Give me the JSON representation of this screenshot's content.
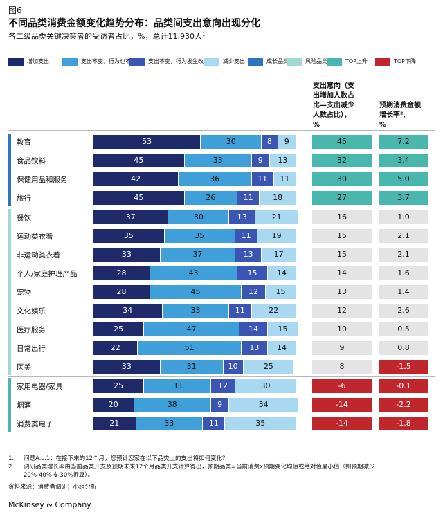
{
  "header": {
    "figure_label": "图6",
    "title": "不同品类消费金额变化趋势分布：品类间支出意向出现分化",
    "subtitle": "各二级品类关键决策者的受访者占比，%，总计11,930人",
    "subtitle_sup": "1"
  },
  "legend": [
    {
      "label": "增加支出",
      "color": "#1f2a6b"
    },
    {
      "label": "支出不变，行为也不变",
      "color": "#3f9fd8"
    },
    {
      "label": "支出不变，行为发生改变",
      "color": "#3a55b4"
    },
    {
      "label": "减少支出",
      "color": "#a9d8f1"
    },
    {
      "label": "成长品类",
      "color": "#2f74c0"
    },
    {
      "label": "风险品类",
      "color": "#9fdad4"
    },
    {
      "label": "TOP上升",
      "color": "#49b7ad"
    },
    {
      "label": "TOP下降",
      "color": "#c0272d"
    }
  ],
  "columns": {
    "intent_header_lines": [
      "支出意向（支",
      "出增加人数占",
      "比—支出减少",
      "人数占比），",
      "%"
    ],
    "growth_header_lines": [
      "预期消费金额",
      "增长率²,",
      "%"
    ]
  },
  "chart_data": {
    "type": "bar",
    "stacked": true,
    "orientation": "horizontal",
    "xlim": [
      0,
      100
    ],
    "categories": [
      "教育",
      "食品饮料",
      "保健用品和服务",
      "旅行",
      "餐饮",
      "运动类衣着",
      "非运动类衣着",
      "个人/家庭护理产品",
      "宠物",
      "文化娱乐",
      "医疗服务",
      "日常出行",
      "医美",
      "家用电器/家具",
      "烟酒",
      "消费类电子"
    ],
    "groups": [
      {
        "color": "#2f74c0",
        "rows": [
          0,
          3
        ]
      },
      {
        "color": "#9fdad4",
        "rows": [
          4,
          12
        ]
      },
      {
        "color": "#49b7ad",
        "rows": [
          13,
          15
        ]
      }
    ],
    "series": [
      {
        "name": "增加支出",
        "color": "#1f2a6b",
        "text_color": "#ffffff",
        "values": [
          53,
          45,
          42,
          45,
          37,
          35,
          33,
          28,
          28,
          34,
          25,
          22,
          33,
          25,
          20,
          21
        ]
      },
      {
        "name": "支出不变，行为也不变",
        "color": "#3f9fd8",
        "text_color": "#111111",
        "values": [
          30,
          33,
          36,
          26,
          30,
          35,
          37,
          43,
          45,
          33,
          47,
          51,
          31,
          33,
          38,
          33
        ]
      },
      {
        "name": "支出不变，行为发生改变",
        "color": "#3a55b4",
        "text_color": "#ffffff",
        "values": [
          8,
          9,
          11,
          11,
          13,
          11,
          13,
          15,
          12,
          11,
          14,
          13,
          10,
          12,
          9,
          11
        ]
      },
      {
        "name": "减少支出",
        "color": "#a9d8f1",
        "text_color": "#111111",
        "values": [
          9,
          13,
          11,
          18,
          21,
          19,
          17,
          14,
          15,
          22,
          15,
          14,
          25,
          30,
          34,
          35
        ]
      }
    ],
    "spending_intent": [
      "45",
      "32",
      "30",
      "27",
      "16",
      "15",
      "15",
      "14",
      "13",
      "12",
      "10",
      "9",
      "8",
      "-6",
      "-14",
      "-14"
    ],
    "spending_intent_status": [
      "up",
      "up",
      "up",
      "up",
      "neutral",
      "neutral",
      "neutral",
      "neutral",
      "neutral",
      "neutral",
      "neutral",
      "neutral",
      "neutral",
      "down",
      "down",
      "down"
    ],
    "expected_growth": [
      "7.2",
      "3.4",
      "5.0",
      "3.7",
      "1.0",
      "2.1",
      "2.1",
      "1.6",
      "1.4",
      "2.6",
      "0.5",
      "0.8",
      "-1.5",
      "-0.1",
      "-2.2",
      "-1.8"
    ],
    "expected_growth_status": [
      "up",
      "up",
      "up",
      "up",
      "neutral",
      "neutral",
      "neutral",
      "neutral",
      "neutral",
      "neutral",
      "neutral",
      "neutral",
      "down",
      "down",
      "down",
      "down"
    ],
    "status_colors": {
      "up": "#49b7ad",
      "neutral": "#e4e4e4",
      "down": "#c0272d"
    }
  },
  "footnotes": [
    {
      "num": "1.",
      "lines": [
        "问题A.c.1：在接下来的12个月，您预计您家在以下品类上的支出将如何变化？"
      ]
    },
    {
      "num": "2.",
      "lines": [
        "调研品类增长率由当前品类开支及预期未来12个月品类开支计算得出，预期品类=当前消费x预期变化均值或绝对值最小值（如预期减少",
        "20%-40%按-30%折算）。"
      ]
    }
  ],
  "source": "资料来源：消费者调研；小组分析",
  "brand": "McKinsey & Company"
}
